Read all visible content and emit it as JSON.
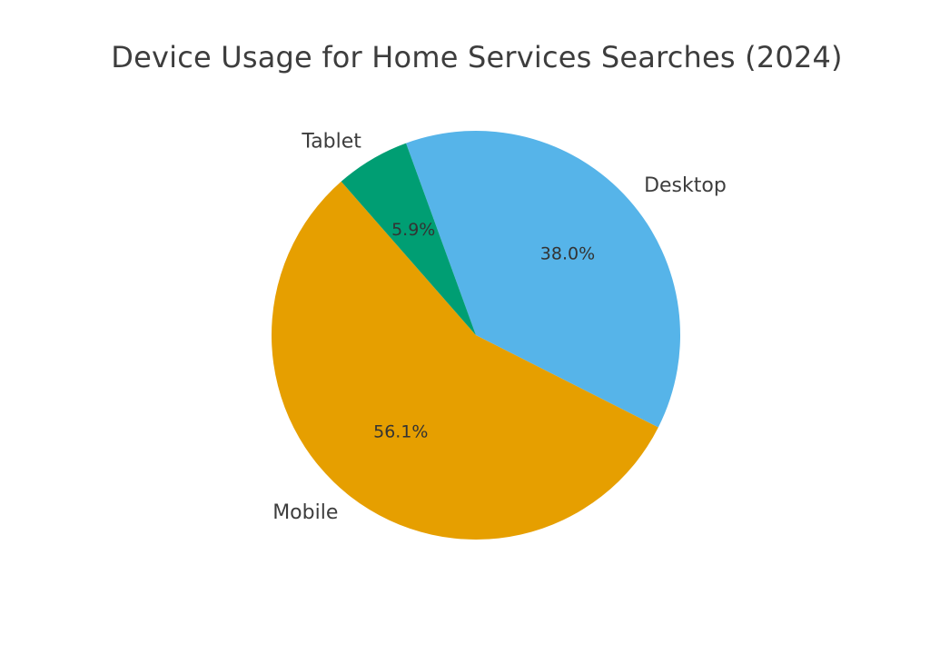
{
  "chart_data": {
    "type": "pie",
    "title": "Device Usage for Home Services Searches (2024)",
    "categories": [
      "Desktop",
      "Mobile",
      "Tablet"
    ],
    "values": [
      38.0,
      56.1,
      5.9
    ],
    "value_labels": [
      "38.0%",
      "56.1%",
      "5.9%"
    ],
    "colors": [
      "#56B4E9",
      "#E69F00",
      "#009E73"
    ],
    "start_angle_deg": 110,
    "direction": "clockwise",
    "legend": "none",
    "grid": false
  }
}
